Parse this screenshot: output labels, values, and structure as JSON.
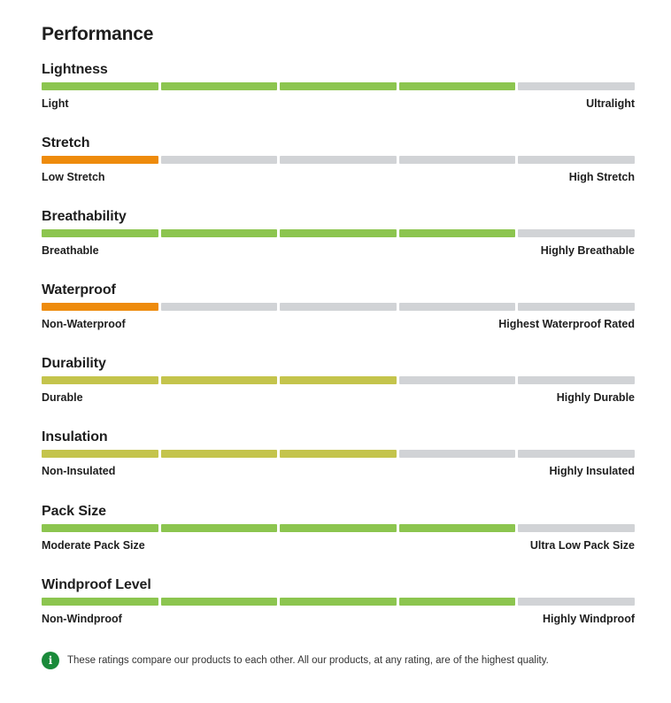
{
  "page": {
    "title": "Performance"
  },
  "colors": {
    "green": "#8cc54f",
    "orange": "#ee8b0c",
    "olive": "#c4c44c",
    "empty": "#d1d3d6",
    "info": "#1a8a3a"
  },
  "metrics": [
    {
      "name": "Lightness",
      "low": "Light",
      "high": "Ultralight",
      "filled": 4,
      "total": 5,
      "color": "#8cc54f"
    },
    {
      "name": "Stretch",
      "low": "Low Stretch",
      "high": "High Stretch",
      "filled": 1,
      "total": 5,
      "color": "#ee8b0c"
    },
    {
      "name": "Breathability",
      "low": "Breathable",
      "high": "Highly Breathable",
      "filled": 4,
      "total": 5,
      "color": "#8cc54f"
    },
    {
      "name": "Waterproof",
      "low": "Non-Waterproof",
      "high": "Highest Waterproof Rated",
      "filled": 1,
      "total": 5,
      "color": "#ee8b0c"
    },
    {
      "name": "Durability",
      "low": "Durable",
      "high": "Highly Durable",
      "filled": 3,
      "total": 5,
      "color": "#c4c44c"
    },
    {
      "name": "Insulation",
      "low": "Non-Insulated",
      "high": "Highly Insulated",
      "filled": 3,
      "total": 5,
      "color": "#c4c44c"
    },
    {
      "name": "Pack Size",
      "low": "Moderate Pack Size",
      "high": "Ultra Low Pack Size",
      "filled": 4,
      "total": 5,
      "color": "#8cc54f"
    },
    {
      "name": "Windproof Level",
      "low": "Non-Windproof",
      "high": "Highly Windproof",
      "filled": 4,
      "total": 5,
      "color": "#8cc54f"
    }
  ],
  "note": {
    "icon": "info-icon",
    "text": "These ratings compare our products to each other. All our products, at any rating, are of the highest quality."
  }
}
